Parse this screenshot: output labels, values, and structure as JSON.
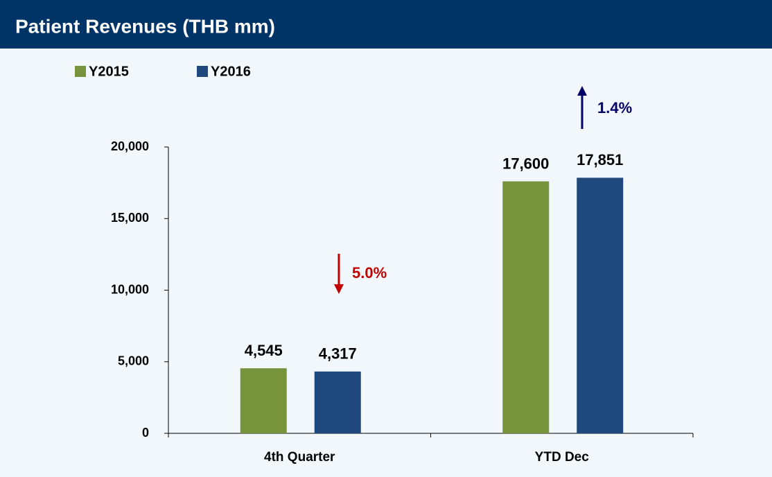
{
  "chart_data": {
    "type": "bar",
    "title": "Patient Revenues (THB mm)",
    "categories": [
      "4th Quarter",
      "YTD Dec"
    ],
    "series": [
      {
        "name": "Y2015",
        "color": "#77933c",
        "values": [
          4545,
          17600
        ],
        "value_labels": [
          "4,545",
          "17,600"
        ]
      },
      {
        "name": "Y2016",
        "color": "#1f497d",
        "values": [
          4317,
          17851
        ],
        "value_labels": [
          "4,317",
          "17,851"
        ]
      }
    ],
    "ylim": [
      0,
      20000
    ],
    "yticks": [
      0,
      {
        "value": 5000,
        "label": "5,000"
      },
      {
        "value": 10000,
        "label": "10,000"
      },
      {
        "value": 15000,
        "label": "15,000"
      },
      {
        "value": 20000,
        "label": "20,000"
      }
    ],
    "grid": false,
    "legend": "top",
    "annotations": [
      {
        "text": "5.0%",
        "color": "#c00000"
      },
      {
        "text": "1.4%",
        "color": "#000066"
      }
    ]
  }
}
